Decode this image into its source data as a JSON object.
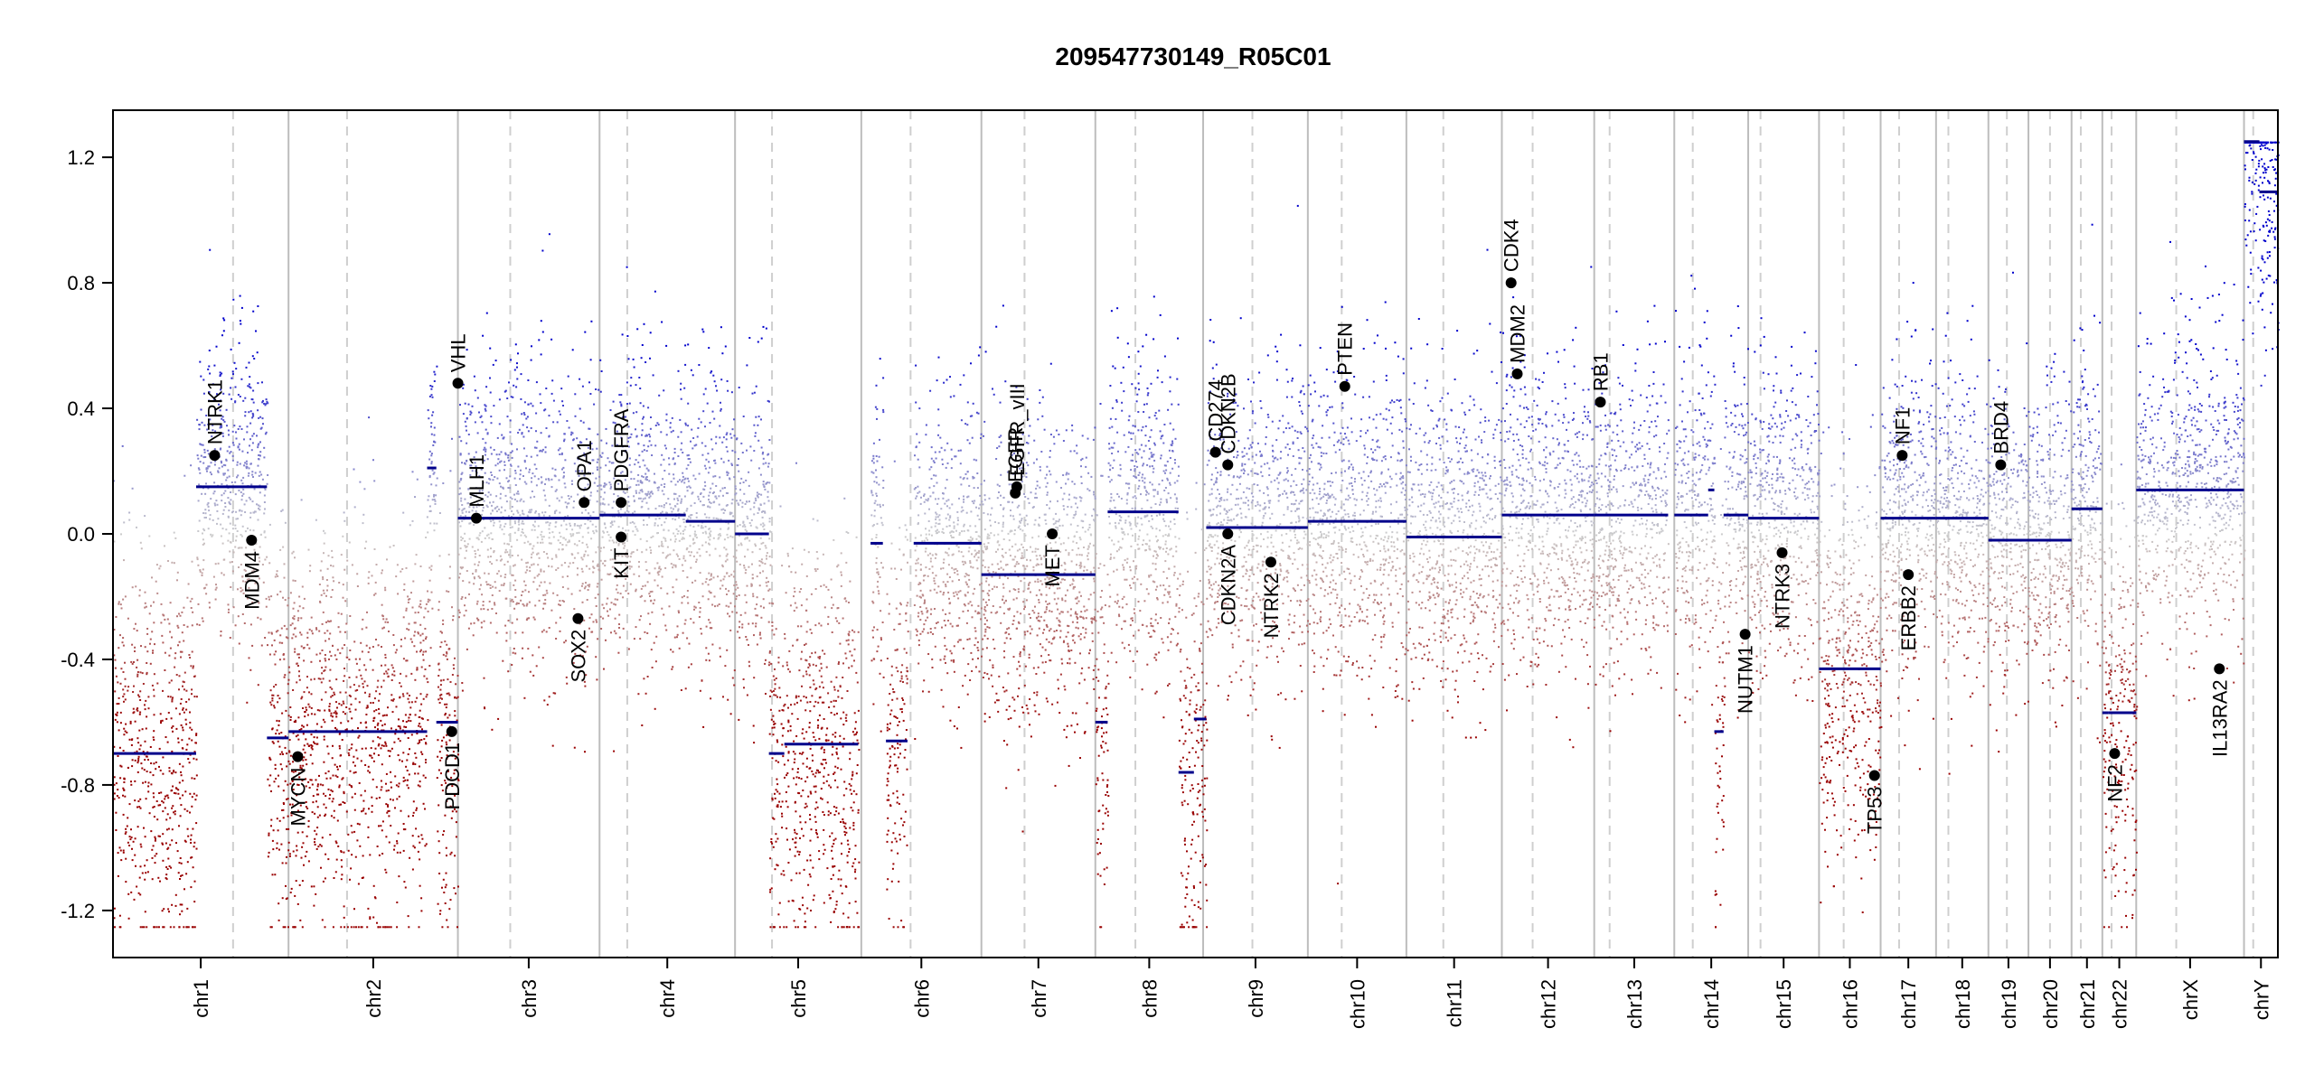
{
  "chart_data": {
    "type": "scatter",
    "title": "209547730149_R05C01",
    "xlabel": "",
    "ylabel": "",
    "ylim": [
      -1.35,
      1.35
    ],
    "yticks": [
      -1.2,
      -0.8,
      -0.4,
      0.0,
      0.4,
      0.8,
      1.2
    ],
    "ytick_labels": [
      "-1.2",
      "-0.8",
      "-0.4",
      "0.0",
      "0.4",
      "0.8",
      "1.2"
    ],
    "clip": [
      -1.25,
      1.25
    ],
    "point_colors": {
      "high": "#0000cc",
      "mid": "#cccccc",
      "low": "#990000"
    },
    "segment_color": "#00008b",
    "grid": "chromosome boundaries (solid) and centromeres (dashed)",
    "chromosomes": [
      {
        "name": "chr1",
        "start": 0.0,
        "end": 5.7,
        "centromere": 3.9
      },
      {
        "name": "chr2",
        "start": 5.7,
        "end": 11.2,
        "centromere": 7.6
      },
      {
        "name": "chr3",
        "start": 11.2,
        "end": 15.8,
        "centromere": 12.9
      },
      {
        "name": "chr4",
        "start": 15.8,
        "end": 20.2,
        "centromere": 16.7
      },
      {
        "name": "chr5",
        "start": 20.2,
        "end": 24.3,
        "centromere": 21.4
      },
      {
        "name": "chr6",
        "start": 24.3,
        "end": 28.2,
        "centromere": 25.9
      },
      {
        "name": "chr7",
        "start": 28.2,
        "end": 31.9,
        "centromere": 29.6
      },
      {
        "name": "chr8",
        "start": 31.9,
        "end": 35.4,
        "centromere": 33.2
      },
      {
        "name": "chr9",
        "start": 35.4,
        "end": 38.8,
        "centromere": 37.0
      },
      {
        "name": "chr10",
        "start": 38.8,
        "end": 42.0,
        "centromere": 39.9
      },
      {
        "name": "chr11",
        "start": 42.0,
        "end": 45.1,
        "centromere": 43.2
      },
      {
        "name": "chr12",
        "start": 45.1,
        "end": 48.1,
        "centromere": 46.1
      },
      {
        "name": "chr13",
        "start": 48.1,
        "end": 50.7,
        "centromere": 48.6
      },
      {
        "name": "chr14",
        "start": 50.7,
        "end": 53.1,
        "centromere": 51.3
      },
      {
        "name": "chr15",
        "start": 53.1,
        "end": 55.4,
        "centromere": 53.5
      },
      {
        "name": "chr16",
        "start": 55.4,
        "end": 57.4,
        "centromere": 56.2
      },
      {
        "name": "chr17",
        "start": 57.4,
        "end": 59.2,
        "centromere": 58.0
      },
      {
        "name": "chr18",
        "start": 59.2,
        "end": 60.9,
        "centromere": 59.6
      },
      {
        "name": "chr19",
        "start": 60.9,
        "end": 62.2,
        "centromere": 61.5
      },
      {
        "name": "chr20",
        "start": 62.2,
        "end": 63.6,
        "centromere": 62.9
      },
      {
        "name": "chr21",
        "start": 63.6,
        "end": 64.6,
        "centromere": 63.9
      },
      {
        "name": "chr22",
        "start": 64.6,
        "end": 65.7,
        "centromere": 64.9
      },
      {
        "name": "chrX",
        "start": 65.7,
        "end": 69.2,
        "centromere": 67.0
      },
      {
        "name": "chrY",
        "start": 69.2,
        "end": 70.3,
        "centromere": 69.5
      }
    ],
    "segments": [
      {
        "x0": 0.0,
        "x1": 2.7,
        "y": -0.7
      },
      {
        "x0": 2.7,
        "x1": 5.0,
        "y": 0.15
      },
      {
        "x0": 5.0,
        "x1": 5.7,
        "y": -0.65
      },
      {
        "x0": 5.7,
        "x1": 10.2,
        "y": -0.63
      },
      {
        "x0": 10.2,
        "x1": 10.5,
        "y": 0.21
      },
      {
        "x0": 10.5,
        "x1": 11.2,
        "y": -0.6
      },
      {
        "x0": 11.2,
        "x1": 15.8,
        "y": 0.05
      },
      {
        "x0": 15.8,
        "x1": 18.6,
        "y": 0.06
      },
      {
        "x0": 18.6,
        "x1": 20.2,
        "y": 0.04
      },
      {
        "x0": 20.2,
        "x1": 21.3,
        "y": 0.0
      },
      {
        "x0": 21.3,
        "x1": 21.8,
        "y": -0.7
      },
      {
        "x0": 21.8,
        "x1": 24.2,
        "y": -0.67
      },
      {
        "x0": 24.6,
        "x1": 25.0,
        "y": -0.03
      },
      {
        "x0": 25.1,
        "x1": 25.8,
        "y": -0.66
      },
      {
        "x0": 26.0,
        "x1": 28.2,
        "y": -0.03
      },
      {
        "x0": 28.2,
        "x1": 31.9,
        "y": -0.13
      },
      {
        "x0": 31.9,
        "x1": 32.3,
        "y": -0.6
      },
      {
        "x0": 32.3,
        "x1": 34.6,
        "y": 0.07
      },
      {
        "x0": 34.6,
        "x1": 35.1,
        "y": -0.76
      },
      {
        "x0": 35.1,
        "x1": 35.5,
        "y": -0.59
      },
      {
        "x0": 35.5,
        "x1": 38.8,
        "y": 0.02
      },
      {
        "x0": 38.8,
        "x1": 42.0,
        "y": 0.04
      },
      {
        "x0": 42.0,
        "x1": 45.1,
        "y": -0.01
      },
      {
        "x0": 45.1,
        "x1": 48.1,
        "y": 0.06
      },
      {
        "x0": 48.1,
        "x1": 50.5,
        "y": 0.06
      },
      {
        "x0": 50.7,
        "x1": 51.8,
        "y": 0.06
      },
      {
        "x0": 51.8,
        "x1": 52.0,
        "y": 0.14
      },
      {
        "x0": 52.0,
        "x1": 52.3,
        "y": -0.63
      },
      {
        "x0": 52.3,
        "x1": 53.1,
        "y": 0.06
      },
      {
        "x0": 53.1,
        "x1": 55.4,
        "y": 0.05
      },
      {
        "x0": 55.4,
        "x1": 57.4,
        "y": -0.43
      },
      {
        "x0": 57.4,
        "x1": 59.2,
        "y": 0.05
      },
      {
        "x0": 59.2,
        "x1": 60.9,
        "y": 0.05
      },
      {
        "x0": 60.9,
        "x1": 62.2,
        "y": -0.02
      },
      {
        "x0": 62.2,
        "x1": 63.6,
        "y": -0.02
      },
      {
        "x0": 63.6,
        "x1": 64.6,
        "y": 0.08
      },
      {
        "x0": 64.6,
        "x1": 64.8,
        "y": -0.57
      },
      {
        "x0": 64.8,
        "x1": 65.7,
        "y": -0.57
      },
      {
        "x0": 65.7,
        "x1": 69.2,
        "y": 0.14
      },
      {
        "x0": 69.2,
        "x1": 69.7,
        "y": 1.25
      },
      {
        "x0": 69.7,
        "x1": 70.3,
        "y": 1.09
      }
    ],
    "genes": [
      {
        "name": "NTRK1",
        "x": 3.3,
        "y": 0.25,
        "label_side": "above"
      },
      {
        "name": "MDM4",
        "x": 4.5,
        "y": -0.02,
        "label_side": "below"
      },
      {
        "name": "MYCN",
        "x": 6.0,
        "y": -0.71,
        "label_side": "below"
      },
      {
        "name": "PDCD1",
        "x": 11.0,
        "y": -0.63,
        "label_side": "below"
      },
      {
        "name": "VHL",
        "x": 11.2,
        "y": 0.48,
        "label_side": "above"
      },
      {
        "name": "MLH1",
        "x": 11.8,
        "y": 0.05,
        "label_side": "above"
      },
      {
        "name": "SOX2",
        "x": 15.1,
        "y": -0.27,
        "label_side": "below"
      },
      {
        "name": "OPA1",
        "x": 15.3,
        "y": 0.1,
        "label_side": "above"
      },
      {
        "name": "PDGFRA",
        "x": 16.5,
        "y": 0.1,
        "label_side": "above"
      },
      {
        "name": "KIT",
        "x": 16.5,
        "y": -0.01,
        "label_side": "below"
      },
      {
        "name": "EGFR",
        "x": 29.3,
        "y": 0.13,
        "label_side": "above"
      },
      {
        "name": "EGFR_vIII",
        "x": 29.35,
        "y": 0.15,
        "label_side": "above"
      },
      {
        "name": "MET",
        "x": 30.5,
        "y": 0.0,
        "label_side": "below"
      },
      {
        "name": "CD274",
        "x": 35.8,
        "y": 0.26,
        "label_side": "above"
      },
      {
        "name": "CDKN2B",
        "x": 36.2,
        "y": 0.22,
        "label_side": "above"
      },
      {
        "name": "CDKN2A",
        "x": 36.2,
        "y": 0.0,
        "label_side": "below"
      },
      {
        "name": "NTRK2",
        "x": 37.6,
        "y": -0.09,
        "label_side": "below"
      },
      {
        "name": "PTEN",
        "x": 40.0,
        "y": 0.47,
        "label_side": "above"
      },
      {
        "name": "MDM2",
        "x": 45.6,
        "y": 0.51,
        "label_side": "above"
      },
      {
        "name": "CDK4",
        "x": 45.4,
        "y": 0.8,
        "label_side": "above"
      },
      {
        "name": "RB1",
        "x": 48.3,
        "y": 0.42,
        "label_side": "above"
      },
      {
        "name": "NUTM1",
        "x": 53.0,
        "y": -0.32,
        "label_side": "below"
      },
      {
        "name": "NTRK3",
        "x": 54.2,
        "y": -0.06,
        "label_side": "below"
      },
      {
        "name": "TP53",
        "x": 57.2,
        "y": -0.77,
        "label_side": "below"
      },
      {
        "name": "NF1",
        "x": 58.1,
        "y": 0.25,
        "label_side": "above"
      },
      {
        "name": "ERBB2",
        "x": 58.3,
        "y": -0.13,
        "label_side": "below"
      },
      {
        "name": "BRD4",
        "x": 61.3,
        "y": 0.22,
        "label_side": "above"
      },
      {
        "name": "NF2",
        "x": 65.0,
        "y": -0.7,
        "label_side": "below"
      },
      {
        "name": "IL13RA2",
        "x": 68.4,
        "y": -0.43,
        "label_side": "below"
      }
    ]
  }
}
